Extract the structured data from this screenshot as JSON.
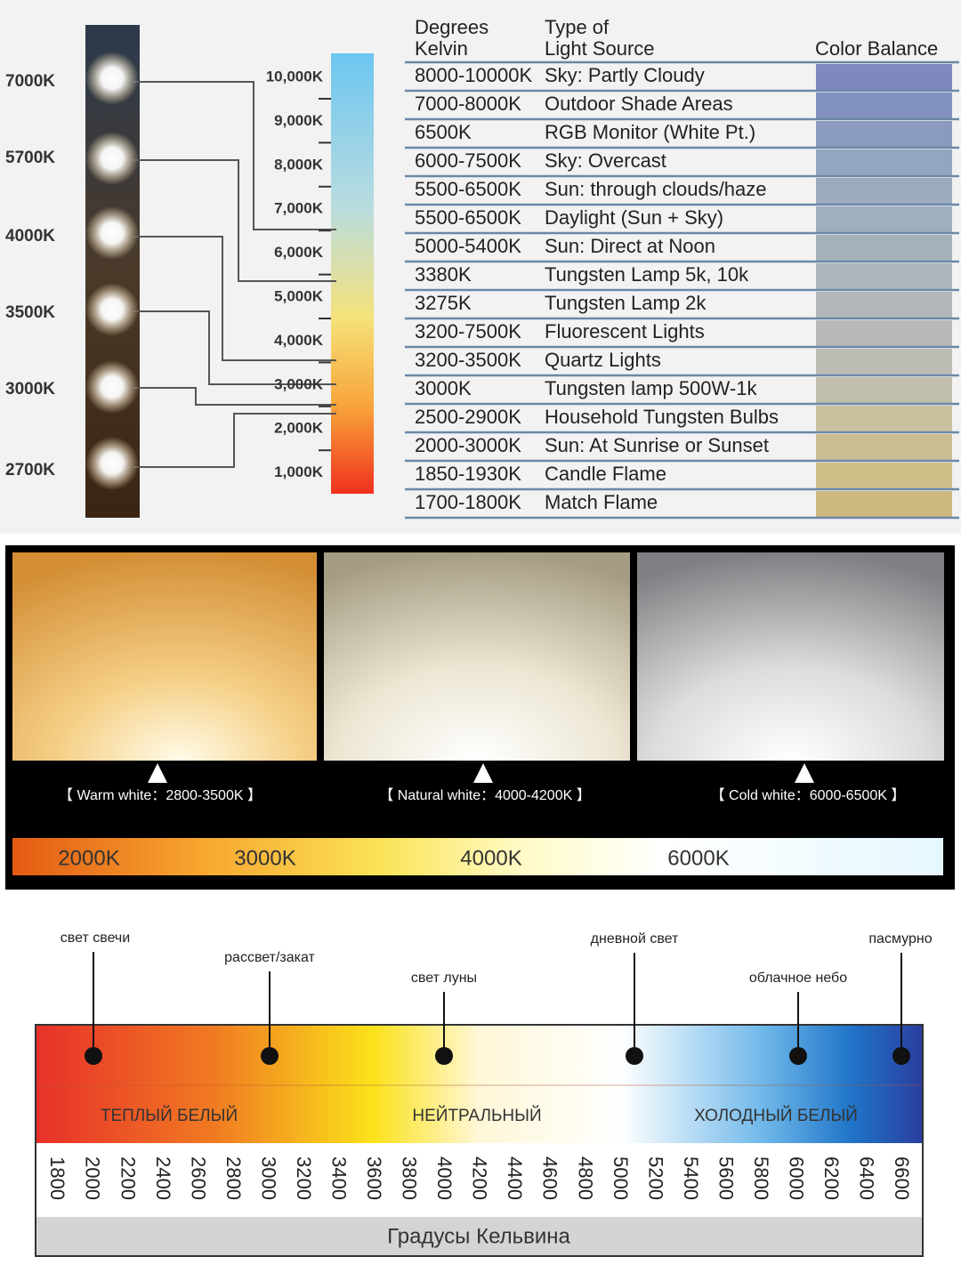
{
  "led_panel": {
    "led_labels": [
      "7000K",
      "5700K",
      "4000K",
      "3500K",
      "3000K",
      "2700K"
    ],
    "scale_labels": [
      "10,000K",
      "9,000K",
      "8,000K",
      "7,000K",
      "6,000K",
      "5,000K",
      "4,000K",
      "3,000K",
      "2,000K",
      "1,000K"
    ]
  },
  "table": {
    "header": {
      "kelvin": [
        "Degrees",
        "Kelvin"
      ],
      "source": [
        "Type of",
        "Light Source"
      ],
      "balance": "Color Balance"
    },
    "rows": [
      [
        "8000-10000K",
        "Sky: Partly Cloudy"
      ],
      [
        "7000-8000K",
        "Outdoor Shade Areas"
      ],
      [
        "6500K",
        "RGB Monitor (White Pt.)"
      ],
      [
        "6000-7500K",
        "Sky: Overcast"
      ],
      [
        "5500-6500K",
        "Sun: through clouds/haze"
      ],
      [
        "5500-6500K",
        "Daylight (Sun + Sky)"
      ],
      [
        "5000-5400K",
        "Sun: Direct at Noon"
      ],
      [
        "3380K",
        "Tungsten Lamp 5k, 10k"
      ],
      [
        "3275K",
        "Tungsten Lamp 2k"
      ],
      [
        "3200-7500K",
        "Fluorescent Lights"
      ],
      [
        "3200-3500K",
        "Quartz Lights"
      ],
      [
        "3000K",
        "Tungsten lamp 500W-1k"
      ],
      [
        "2500-2900K",
        "Household Tungsten Bulbs"
      ],
      [
        "2000-3000K",
        "Sun: At Sunrise or Sunset"
      ],
      [
        "1850-1930K",
        "Candle Flame"
      ],
      [
        "1700-1800K",
        "Match Flame"
      ]
    ]
  },
  "white_types": [
    "【 Warm white：2800-3500K 】",
    "【 Natural white：4000-4200K 】",
    "【 Cold white：6000-6500K 】"
  ],
  "gradient_labels": [
    "2000K",
    "3000K",
    "4000K",
    "6000K"
  ],
  "spectrum": {
    "sources": [
      "свет свечи",
      "рассвет/закат",
      "свет луны",
      "дневной свет",
      "облачное небо",
      "пасмурно"
    ],
    "zones": [
      "ТЕПЛЫЙ БЕЛЫЙ",
      "НЕЙТРАЛЬНЫЙ",
      "ХОЛОДНЫЙ БЕЛЫЙ"
    ],
    "scale": [
      1800,
      2000,
      2200,
      2400,
      2600,
      2800,
      3000,
      3200,
      3400,
      3600,
      3800,
      4000,
      4200,
      4400,
      4600,
      4800,
      5000,
      5200,
      5400,
      5600,
      5800,
      6000,
      6200,
      6400,
      6600
    ],
    "axis_title": "Градусы Кельвина"
  }
}
